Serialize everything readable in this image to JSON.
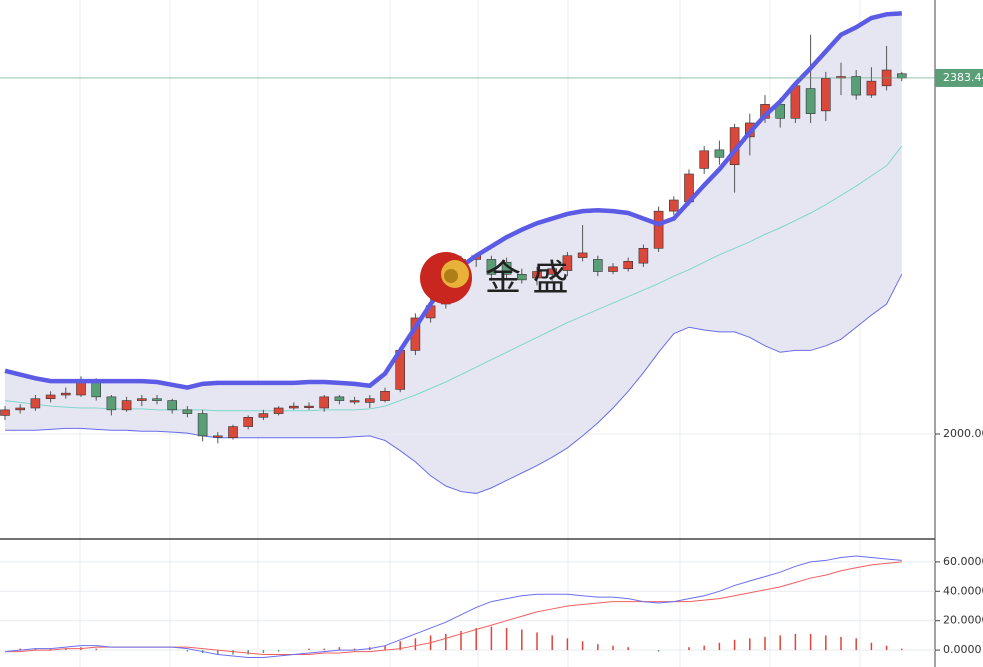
{
  "chart_data": [
    {
      "type": "candlestick",
      "open": [
        2020,
        2026,
        2028,
        2038,
        2042,
        2042,
        2058,
        2040,
        2026,
        2036,
        2038,
        2036,
        2026,
        2022,
        1998,
        1996,
        2008,
        2018,
        2022,
        2028,
        2030,
        2028,
        2040,
        2036,
        2034,
        2036,
        2048,
        2090,
        2125,
        2140,
        2160,
        2188,
        2188,
        2185,
        2172,
        2168,
        2172,
        2176,
        2190,
        2188,
        2175,
        2178,
        2184,
        2200,
        2240,
        2250,
        2286,
        2306,
        2290,
        2320,
        2340,
        2355,
        2340,
        2372,
        2348,
        2384,
        2385,
        2365,
        2375,
        2388
      ],
      "high": [
        2030,
        2032,
        2042,
        2046,
        2050,
        2062,
        2060,
        2042,
        2040,
        2042,
        2042,
        2038,
        2030,
        2026,
        2002,
        2010,
        2020,
        2026,
        2030,
        2034,
        2034,
        2042,
        2042,
        2040,
        2042,
        2050,
        2094,
        2130,
        2150,
        2170,
        2192,
        2195,
        2192,
        2190,
        2178,
        2180,
        2182,
        2196,
        2225,
        2192,
        2184,
        2190,
        2204,
        2245,
        2256,
        2285,
        2310,
        2316,
        2334,
        2345,
        2365,
        2362,
        2380,
        2430,
        2390,
        2400,
        2392,
        2395,
        2418,
        2390
      ],
      "low": [
        2015,
        2022,
        2025,
        2034,
        2038,
        2040,
        2036,
        2020,
        2024,
        2030,
        2032,
        2022,
        2018,
        1992,
        1990,
        1994,
        2005,
        2015,
        2020,
        2026,
        2026,
        2024,
        2032,
        2032,
        2028,
        2034,
        2045,
        2085,
        2120,
        2135,
        2155,
        2180,
        2165,
        2168,
        2162,
        2160,
        2165,
        2170,
        2186,
        2170,
        2172,
        2175,
        2180,
        2196,
        2236,
        2246,
        2280,
        2290,
        2260,
        2300,
        2335,
        2330,
        2335,
        2335,
        2337,
        2365,
        2360,
        2362,
        2370,
        2380
      ],
      "close": [
        2026,
        2028,
        2038,
        2042,
        2044,
        2058,
        2040,
        2026,
        2036,
        2038,
        2036,
        2026,
        2022,
        1998,
        1998,
        2008,
        2018,
        2022,
        2028,
        2030,
        2030,
        2040,
        2036,
        2036,
        2038,
        2046,
        2090,
        2125,
        2138,
        2165,
        2188,
        2192,
        2172,
        2172,
        2166,
        2175,
        2178,
        2192,
        2195,
        2175,
        2180,
        2186,
        2200,
        2240,
        2252,
        2280,
        2305,
        2298,
        2330,
        2335,
        2355,
        2340,
        2375,
        2345,
        2383,
        2385,
        2365,
        2380,
        2392,
        2383.44
      ],
      "up_color": "#d9483b",
      "down_color": "#5a9e78",
      "bands": {
        "upper": [
          2068,
          2064,
          2060,
          2057,
          2057,
          2057,
          2057,
          2057,
          2057,
          2057,
          2056,
          2053,
          2050,
          2054,
          2055,
          2055,
          2055,
          2055,
          2055,
          2055,
          2056,
          2056,
          2055,
          2054,
          2052,
          2065,
          2090,
          2115,
          2140,
          2162,
          2180,
          2192,
          2202,
          2212,
          2220,
          2227,
          2232,
          2237,
          2240,
          2241,
          2240,
          2238,
          2232,
          2226,
          2232,
          2250,
          2268,
          2285,
          2305,
          2325,
          2343,
          2358,
          2377,
          2394,
          2412,
          2430,
          2438,
          2448,
          2452,
          2453
        ],
        "middle": [
          2036,
          2034,
          2032,
          2030,
          2029,
          2028,
          2028,
          2027,
          2027,
          2027,
          2026,
          2026,
          2026,
          2026,
          2025,
          2025,
          2025,
          2025,
          2025,
          2025,
          2025,
          2026,
          2026,
          2026,
          2027,
          2030,
          2036,
          2042,
          2049,
          2056,
          2064,
          2072,
          2080,
          2088,
          2096,
          2104,
          2112,
          2120,
          2127,
          2134,
          2141,
          2148,
          2155,
          2162,
          2170,
          2177,
          2185,
          2193,
          2200,
          2207,
          2215,
          2222,
          2230,
          2238,
          2247,
          2257,
          2267,
          2278,
          2289,
          2310
        ],
        "lower": [
          2004,
          2004,
          2004,
          2005,
          2006,
          2006,
          2005,
          2004,
          2004,
          2003,
          2003,
          2002,
          2001,
          1998,
          1996,
          1996,
          1996,
          1996,
          1996,
          1996,
          1996,
          1996,
          1996,
          1997,
          1998,
          1993,
          1982,
          1970,
          1955,
          1944,
          1938,
          1936,
          1942,
          1950,
          1958,
          1966,
          1975,
          1985,
          1998,
          2012,
          2028,
          2046,
          2066,
          2088,
          2108,
          2115,
          2112,
          2110,
          2110,
          2104,
          2095,
          2088,
          2090,
          2090,
          2095,
          2102,
          2115,
          2128,
          2140,
          2172
        ],
        "upper_color": "#5b5be6",
        "middle_color": "#7fd6cc",
        "lower_color": "#6b6bea",
        "fill_color": "#e6e6f3"
      },
      "ylim": [
        1888,
        2467.4
      ],
      "yticks": [
        {
          "value": 2000,
          "label": "2000.00"
        }
      ],
      "last_price": 2383.44,
      "last_price_color": "#5a9e78",
      "watermark": "金 盛"
    },
    {
      "type": "macd",
      "dif": [
        -1,
        0,
        1,
        1,
        2,
        3,
        3,
        2,
        2,
        2,
        2,
        2,
        1,
        -1,
        -3,
        -4,
        -5,
        -5,
        -4,
        -3,
        -2,
        -1,
        0,
        0,
        1,
        3,
        7,
        11,
        15,
        19,
        24,
        29,
        33,
        35,
        37,
        38,
        38,
        38,
        37,
        36,
        36,
        35,
        33,
        32,
        33,
        35,
        37,
        40,
        44,
        47,
        50,
        53,
        57,
        60,
        61,
        63,
        64,
        63,
        62,
        61
      ],
      "dea": [
        -1,
        -1,
        0,
        0,
        1,
        1,
        2,
        2,
        2,
        2,
        2,
        2,
        2,
        1,
        0,
        -1,
        -2,
        -3,
        -3,
        -3,
        -3,
        -2,
        -2,
        -1,
        -1,
        0,
        1,
        3,
        5,
        8,
        11,
        14,
        17,
        20,
        23,
        26,
        28,
        30,
        31,
        32,
        33,
        33,
        33,
        33,
        33,
        33,
        34,
        35,
        37,
        39,
        41,
        43,
        46,
        49,
        51,
        54,
        56,
        58,
        59,
        60
      ],
      "hist": [
        0,
        1,
        1,
        1,
        1,
        2,
        1,
        0,
        0,
        0,
        0,
        0,
        -1,
        -2,
        -3,
        -3,
        -3,
        -2,
        -1,
        0,
        1,
        1,
        2,
        1,
        2,
        3,
        6,
        8,
        10,
        11,
        13,
        15,
        16,
        15,
        14,
        12,
        10,
        8,
        6,
        4,
        3,
        2,
        0,
        -1,
        0,
        2,
        3,
        5,
        7,
        8,
        9,
        10,
        11,
        11,
        10,
        9,
        8,
        5,
        3,
        1
      ],
      "dif_color": "#6a6ef0",
      "dea_color": "#f06060",
      "hist_up_color": "#e0443a",
      "hist_down_color": "#4aa070",
      "ylim": [
        -11.5,
        74.9
      ],
      "yticks": [
        {
          "value": 0,
          "label": "0.0000"
        },
        {
          "value": 20,
          "label": "20.0000"
        },
        {
          "value": 40,
          "label": "40.0000"
        },
        {
          "value": 60,
          "label": "60.0000"
        }
      ]
    }
  ]
}
